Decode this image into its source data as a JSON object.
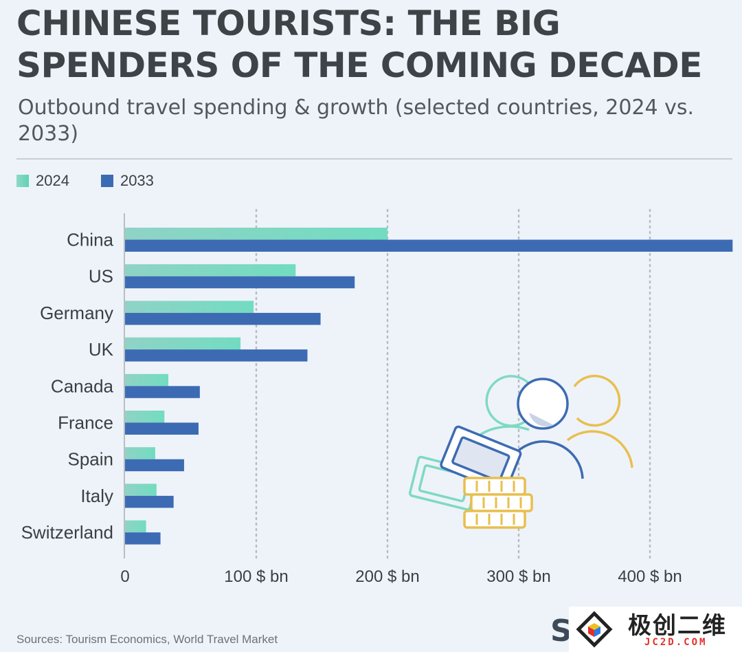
{
  "header": {
    "title": "CHINESE TOURISTS: THE BIG SPENDERS OF THE COMING DECADE",
    "subtitle": "Outbound travel spending & growth (selected countries, 2024 vs. 2033)"
  },
  "legend": [
    {
      "label": "2024",
      "color": "#6fd9bf"
    },
    {
      "label": "2033",
      "color": "#3d6bb3"
    }
  ],
  "chart_data": {
    "type": "bar",
    "orientation": "horizontal",
    "categories": [
      "China",
      "US",
      "Germany",
      "UK",
      "Canada",
      "France",
      "Spain",
      "Italy",
      "Switzerland"
    ],
    "series": [
      {
        "name": "2024",
        "color": "#6fd9bf",
        "values": [
          200,
          130,
          98,
          88,
          33,
          30,
          23,
          24,
          16
        ]
      },
      {
        "name": "2033",
        "color": "#3d6bb3",
        "values": [
          463,
          175,
          149,
          139,
          57,
          56,
          45,
          37,
          27
        ]
      }
    ],
    "xlim": [
      0,
      463
    ],
    "ticks": [
      0,
      100,
      200,
      300,
      400
    ],
    "tick_labels": [
      "0",
      "100 $ bn",
      "200 $ bn",
      "300 $ bn",
      "400 $ bn"
    ],
    "grid": "vertical dotted",
    "legend_position": "top-left"
  },
  "illustration": {
    "icon": "people-with-money-icon"
  },
  "footer": {
    "source": "Sources: Tourism Economics, World Travel Market",
    "brand": "S"
  },
  "watermark": {
    "text_cn": "极创二维",
    "text_en": "JC2D.COM"
  }
}
